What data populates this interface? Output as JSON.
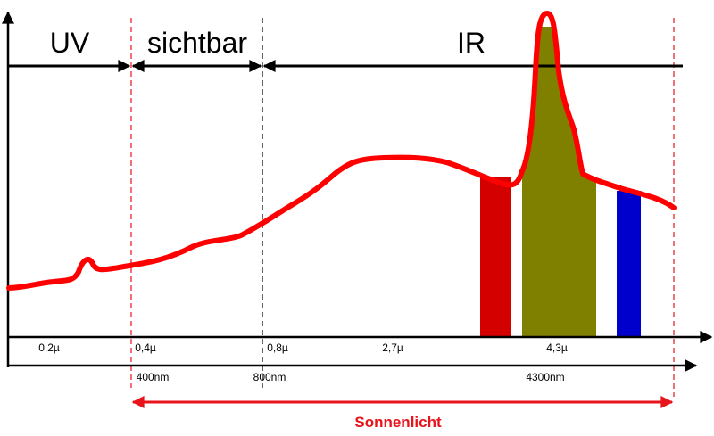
{
  "regions": {
    "uv": "UV",
    "visible": "sichtbar",
    "ir": "IR"
  },
  "upper_axis_ticks": [
    "0,2µ",
    "0,4µ",
    "0,8µ",
    "2,7µ",
    "4,3µ"
  ],
  "lower_axis_ticks": [
    "400nm",
    "800nm",
    "4300nm"
  ],
  "sunlight_label": "Sonnenlicht",
  "colors": {
    "curve": "#ff0000",
    "sunlight": "#e8131b",
    "band_red": "#d40000",
    "band_olive": "#808000",
    "band_blue": "#0000cc",
    "axis": "#000000"
  }
}
